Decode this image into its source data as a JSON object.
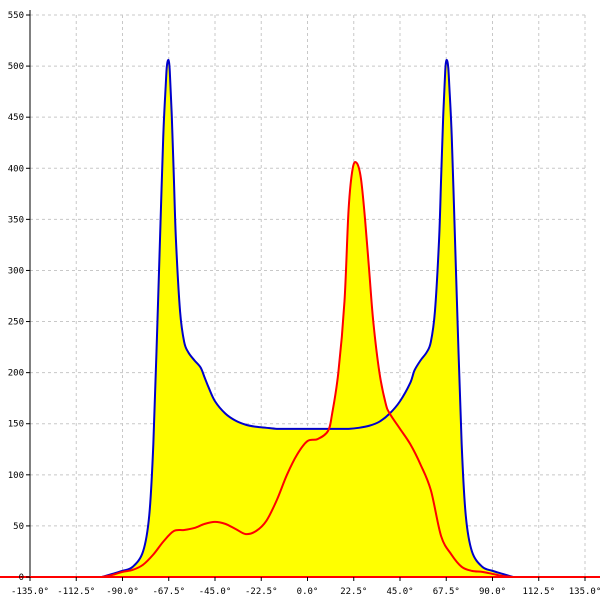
{
  "chart_data": {
    "type": "area",
    "title": "",
    "xlabel": "",
    "ylabel": "",
    "xlim": [
      -135,
      135
    ],
    "ylim": [
      0,
      550
    ],
    "grid": true,
    "x_ticks": [
      -135,
      -112.5,
      -90,
      -67.5,
      -45,
      -22.5,
      0,
      22.5,
      45,
      67.5,
      90,
      112.5,
      135
    ],
    "x_tick_labels": [
      "-135.0°",
      "-112.5°",
      "-90.0°",
      "-67.5°",
      "-45.0°",
      "-22.5°",
      "0.0°",
      "22.5°",
      "45.0°",
      "67.5°",
      "90.0°",
      "112.5°",
      "135.0°"
    ],
    "y_ticks": [
      0,
      50,
      100,
      150,
      200,
      250,
      300,
      350,
      400,
      450,
      500,
      550
    ],
    "y_tick_labels": [
      "0",
      "50",
      "100",
      "150",
      "200",
      "250",
      "300",
      "350",
      "400",
      "450",
      "500",
      "550"
    ],
    "series": [
      {
        "fill": "#ffff00",
        "color": "#0000cc",
        "x": [
          -100,
          -95,
          -90,
          -85,
          -80,
          -77,
          -75,
          -73,
          -71,
          -70,
          -69,
          -68.5,
          -68,
          -67.5,
          -67,
          -66,
          -65,
          -64,
          -62,
          -60,
          -58,
          -55,
          -52,
          -50,
          -48,
          -45,
          -40,
          -35,
          -30,
          -25,
          -20,
          -15,
          -10,
          -5,
          0,
          5,
          10,
          15,
          20,
          25,
          30,
          35,
          40,
          45,
          50,
          52,
          55,
          58,
          60,
          62,
          64,
          65,
          66,
          67,
          67.5,
          68,
          68.5,
          69,
          70,
          71,
          73,
          75,
          77,
          80,
          85,
          90,
          95,
          100
        ],
        "y": [
          0,
          3,
          6,
          10,
          25,
          60,
          130,
          250,
          380,
          440,
          480,
          498,
          505,
          505,
          495,
          450,
          390,
          330,
          260,
          230,
          220,
          212,
          205,
          195,
          185,
          172,
          160,
          153,
          149,
          147,
          146,
          145,
          145,
          145,
          145,
          145,
          145,
          145,
          145,
          146,
          148,
          152,
          160,
          172,
          190,
          202,
          212,
          220,
          230,
          260,
          330,
          390,
          450,
          495,
          505,
          505,
          498,
          480,
          440,
          380,
          250,
          130,
          60,
          25,
          10,
          6,
          3,
          0
        ]
      },
      {
        "fill": "#ffff00",
        "color": "#ff0000",
        "x": [
          -100,
          -95,
          -90,
          -85,
          -80,
          -75,
          -70,
          -65,
          -60,
          -55,
          -50,
          -45,
          -40,
          -35,
          -30,
          -25,
          -20,
          -15,
          -10,
          -5,
          0,
          5,
          10,
          12,
          15,
          18,
          20,
          22,
          24,
          26,
          28,
          30,
          32,
          35,
          38,
          40,
          45,
          50,
          55,
          60,
          65,
          70,
          75,
          80,
          85,
          90,
          95,
          100
        ],
        "y": [
          0,
          2,
          5,
          7,
          12,
          22,
          35,
          45,
          46,
          48,
          52,
          54,
          52,
          47,
          42,
          45,
          55,
          75,
          100,
          120,
          133,
          135,
          143,
          160,
          200,
          270,
          360,
          400,
          405,
          390,
          350,
          300,
          250,
          200,
          170,
          160,
          145,
          130,
          110,
          85,
          40,
          22,
          10,
          6,
          5,
          3,
          1,
          0
        ]
      }
    ]
  }
}
